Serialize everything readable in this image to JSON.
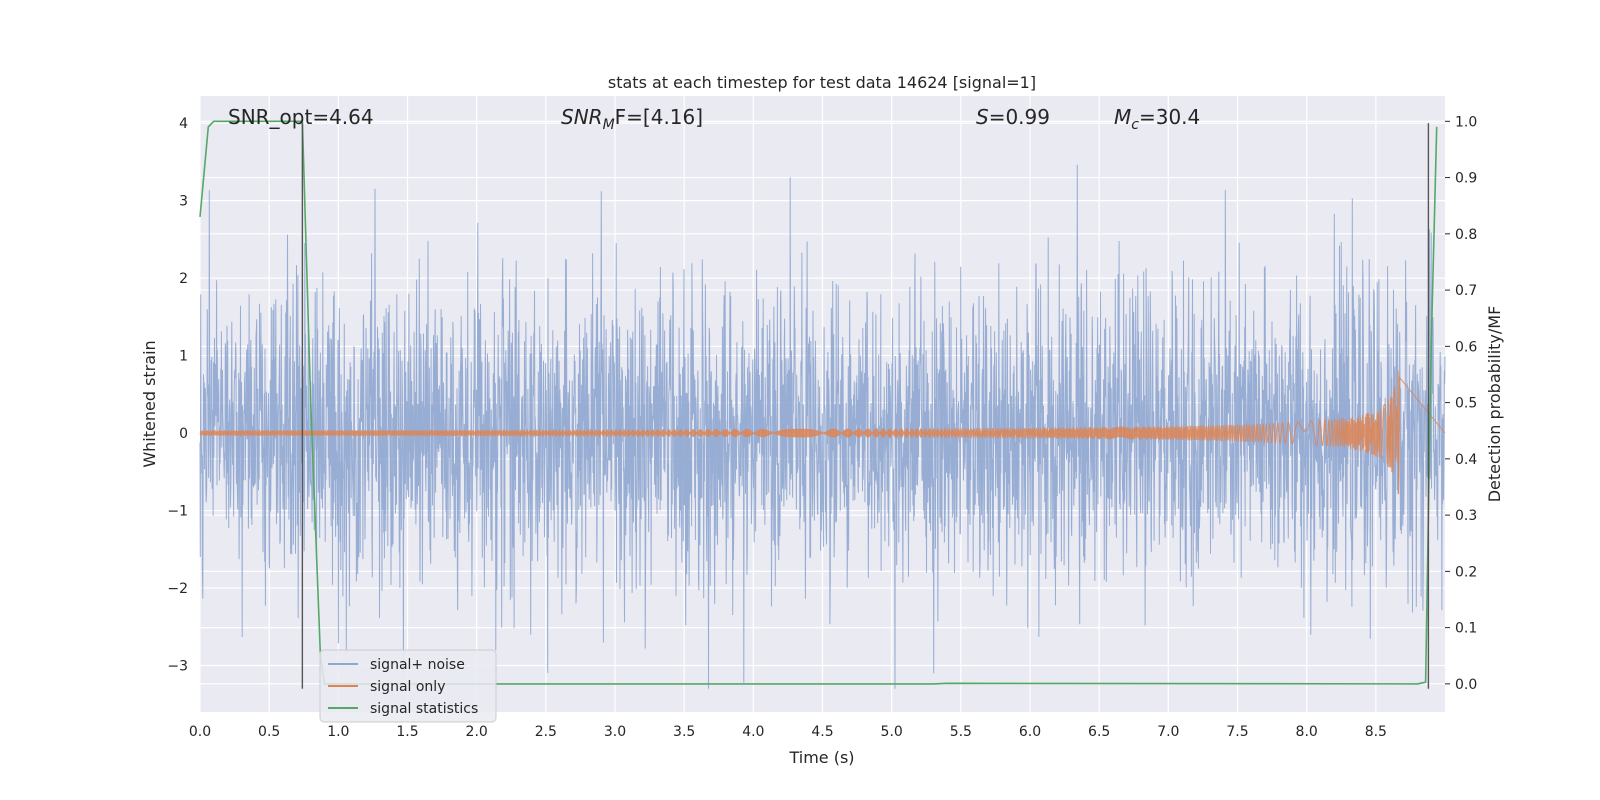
{
  "chart_data": {
    "type": "line",
    "title": "stats at each timestep for test data 14624 [signal=1]",
    "xlabel": "Time (s)",
    "ylabel_left": "Whitened strain",
    "ylabel_right": "Detection probability/MF",
    "xlim": [
      0.0,
      9.0
    ],
    "ylim_left": [
      -3.6,
      4.35
    ],
    "ylim_right": [
      -0.05,
      1.045
    ],
    "grid": true,
    "xticks": [
      "0.0",
      "0.5",
      "1.0",
      "1.5",
      "2.0",
      "2.5",
      "3.0",
      "3.5",
      "4.0",
      "4.5",
      "5.0",
      "5.5",
      "6.0",
      "6.5",
      "7.0",
      "7.5",
      "8.0",
      "8.5"
    ],
    "xtick_values": [
      0.0,
      0.5,
      1.0,
      1.5,
      2.0,
      2.5,
      3.0,
      3.5,
      4.0,
      4.5,
      5.0,
      5.5,
      6.0,
      6.5,
      7.0,
      7.5,
      8.0,
      8.5
    ],
    "yticks_left": [
      "4",
      "3",
      "2",
      "1",
      "0",
      "−1",
      "−2",
      "−3"
    ],
    "ytick_values_left": [
      4,
      3,
      2,
      1,
      0,
      -1,
      -2,
      -3
    ],
    "yticks_right": [
      "1.0",
      "0.9",
      "0.8",
      "0.7",
      "0.6",
      "0.5",
      "0.4",
      "0.3",
      "0.2",
      "0.1",
      "0.0"
    ],
    "ytick_values_right": [
      1.0,
      0.9,
      0.8,
      0.7,
      0.6,
      0.5,
      0.4,
      0.3,
      0.2,
      0.1,
      0.0
    ],
    "annotations": {
      "snr_opt": "SNR_opt=4.64",
      "snr_mf_main": "SNR",
      "snr_mf_sub": "M",
      "snr_mf_rest": "F=[4.16]",
      "s_main": "S",
      "s_rest": "=0.99",
      "mc_main": "M",
      "mc_sub": "c",
      "mc_rest": "=30.4"
    },
    "vertical_lines_x": [
      0.74,
      8.88
    ],
    "series": [
      {
        "name": "signal+ noise",
        "axis": "left",
        "color": "#8fa6cf",
        "description_range": [
          -3.3,
          4.0
        ]
      },
      {
        "name": "signal only",
        "axis": "left",
        "color": "#dd8452",
        "chirp_end": 8.67,
        "peak_amplitude": 1.05
      },
      {
        "name": "signal statistics",
        "axis": "right",
        "color": "#55a868",
        "x": [
          0.0,
          0.06,
          0.1,
          0.72,
          0.74,
          0.8,
          0.87,
          0.9,
          5.3,
          5.4,
          8.8,
          8.86,
          8.9,
          8.94
        ],
        "y": [
          0.83,
          0.99,
          1.0,
          1.0,
          1.0,
          0.5,
          0.05,
          0.0,
          0.0,
          0.001,
          0.0,
          0.003,
          0.6,
          0.99
        ]
      }
    ],
    "legend": {
      "placement": "lower-left",
      "labels": [
        "signal+ noise",
        "signal only",
        "signal statistics"
      ]
    }
  }
}
